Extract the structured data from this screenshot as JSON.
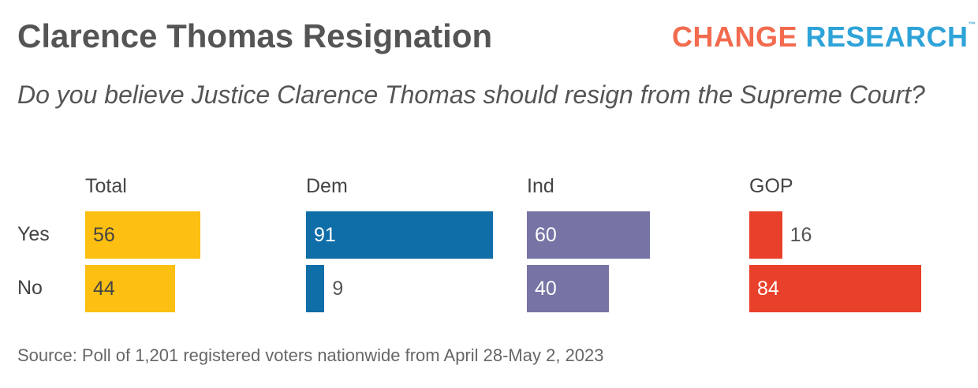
{
  "title": "Clarence Thomas Resignation",
  "logo": {
    "part1": "CHANGE",
    "part2": "RESEARCH",
    "tm": "™"
  },
  "subtitle": "Do you believe Justice Clarence Thomas should resign from the Supreme Court?",
  "source": "Source: Poll of 1,201 registered voters nationwide from April 28-May 2, 2023",
  "chart_data": {
    "type": "bar",
    "orientation": "horizontal",
    "categories": [
      "Yes",
      "No"
    ],
    "panels": [
      {
        "name": "Total",
        "values": [
          56,
          44
        ],
        "color": "#FDBF11",
        "label_color": "#444444"
      },
      {
        "name": "Dem",
        "values": [
          91,
          9
        ],
        "color": "#0F6DA8",
        "label_color": "#FFFFFF"
      },
      {
        "name": "Ind",
        "values": [
          60,
          40
        ],
        "color": "#7674A5",
        "label_color": "#FFFFFF"
      },
      {
        "name": "GOP",
        "values": [
          16,
          84
        ],
        "color": "#E8402A",
        "label_color": "#FFFFFF"
      }
    ],
    "xlim": [
      0,
      100
    ],
    "grid": false,
    "legend": "none"
  }
}
